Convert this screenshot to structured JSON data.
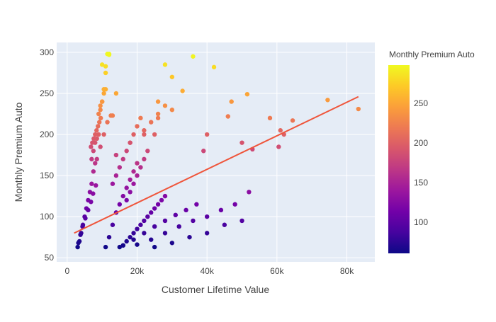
{
  "chart_data": {
    "type": "scatter",
    "xlabel": "Customer Lifetime Value",
    "ylabel": "Monthly Premium Auto",
    "xlim": [
      -3000,
      88000
    ],
    "ylim": [
      45,
      312
    ],
    "x_ticks": [
      0,
      20000,
      40000,
      60000,
      80000
    ],
    "x_tick_labels": [
      "0",
      "20k",
      "40k",
      "60k",
      "80k"
    ],
    "y_ticks": [
      50,
      100,
      150,
      200,
      250,
      300
    ],
    "y_tick_labels": [
      "50",
      "100",
      "150",
      "200",
      "250",
      "300"
    ],
    "grid": true,
    "background": "#e5ecf6",
    "trendline": {
      "x": [
        2000,
        83300
      ],
      "y": [
        80,
        246
      ],
      "color": "#ef553b"
    },
    "colorbar": {
      "title": "Monthly Premium Auto",
      "range": [
        61,
        298
      ],
      "ticks": [
        100,
        150,
        200,
        250
      ],
      "tick_labels": [
        "100",
        "150",
        "200",
        "250"
      ],
      "colorscale": [
        "#0d0887",
        "#46039f",
        "#7201a8",
        "#9c179e",
        "#bd3786",
        "#d8576b",
        "#ed7953",
        "#fb9f3a",
        "#fdca26",
        "#f0f921"
      ]
    },
    "points": {
      "x": [
        3000,
        3500,
        4000,
        4500,
        5000,
        5500,
        6000,
        6500,
        7000,
        7500,
        8000,
        3200,
        3800,
        4400,
        5200,
        6000,
        6800,
        7400,
        8200,
        7000,
        7500,
        8000,
        8500,
        9000,
        9500,
        10000,
        10500,
        11000,
        12000,
        8500,
        9500,
        10500,
        11500,
        12500,
        11000,
        12000,
        13000,
        14000,
        15000,
        16000,
        17000,
        18000,
        19000,
        20000,
        15000,
        16000,
        17000,
        18000,
        19000,
        20000,
        21000,
        22000,
        23000,
        24000,
        25000,
        26000,
        27000,
        28000,
        14000,
        18000,
        22000,
        26000,
        30000,
        16000,
        19000,
        22000,
        25000,
        28000,
        31000,
        34000,
        37000,
        20000,
        24000,
        28000,
        32000,
        36000,
        40000,
        44000,
        48000,
        52000,
        25000,
        30000,
        35000,
        40000,
        45000,
        50000,
        6800,
        7200,
        7600,
        8000,
        8400,
        8800,
        9200,
        9600,
        9000,
        9500,
        10000,
        10500,
        11000,
        13000,
        14000,
        15000,
        16000,
        17000,
        18000,
        19000,
        20000,
        21000,
        17000,
        18000,
        19000,
        20000,
        21000,
        22000,
        23000,
        22000,
        24000,
        26000,
        28000,
        10000,
        11000,
        11500,
        12000,
        13000,
        14000,
        25000,
        26000,
        28000,
        30000,
        33000,
        36000,
        40000,
        47000,
        39000,
        42000,
        46000,
        50000,
        51500,
        53000,
        58000,
        60500,
        61000,
        62000,
        64500,
        74500,
        83300
      ],
      "y": [
        63,
        70,
        80,
        90,
        100,
        110,
        120,
        130,
        140,
        155,
        165,
        68,
        78,
        88,
        98,
        108,
        118,
        128,
        138,
        170,
        180,
        190,
        195,
        200,
        230,
        240,
        255,
        275,
        298,
        170,
        185,
        200,
        215,
        223,
        63,
        75,
        90,
        105,
        115,
        125,
        135,
        145,
        155,
        165,
        63,
        65,
        70,
        75,
        80,
        85,
        90,
        95,
        100,
        105,
        110,
        115,
        120,
        125,
        175,
        190,
        205,
        220,
        230,
        65,
        72,
        80,
        88,
        95,
        102,
        108,
        115,
        66,
        72,
        80,
        88,
        95,
        100,
        108,
        115,
        130,
        63,
        68,
        75,
        80,
        90,
        95,
        185,
        190,
        195,
        200,
        205,
        210,
        215,
        220,
        225,
        235,
        240,
        250,
        255,
        140,
        150,
        160,
        170,
        180,
        190,
        200,
        210,
        220,
        120,
        130,
        140,
        150,
        160,
        170,
        180,
        200,
        215,
        225,
        235,
        285,
        283,
        298,
        297,
        223,
        250,
        200,
        240,
        285,
        270,
        253,
        295,
        200,
        240,
        180,
        282,
        222,
        190,
        249,
        182,
        220,
        185,
        205,
        200,
        217,
        242,
        231
      ]
    }
  }
}
